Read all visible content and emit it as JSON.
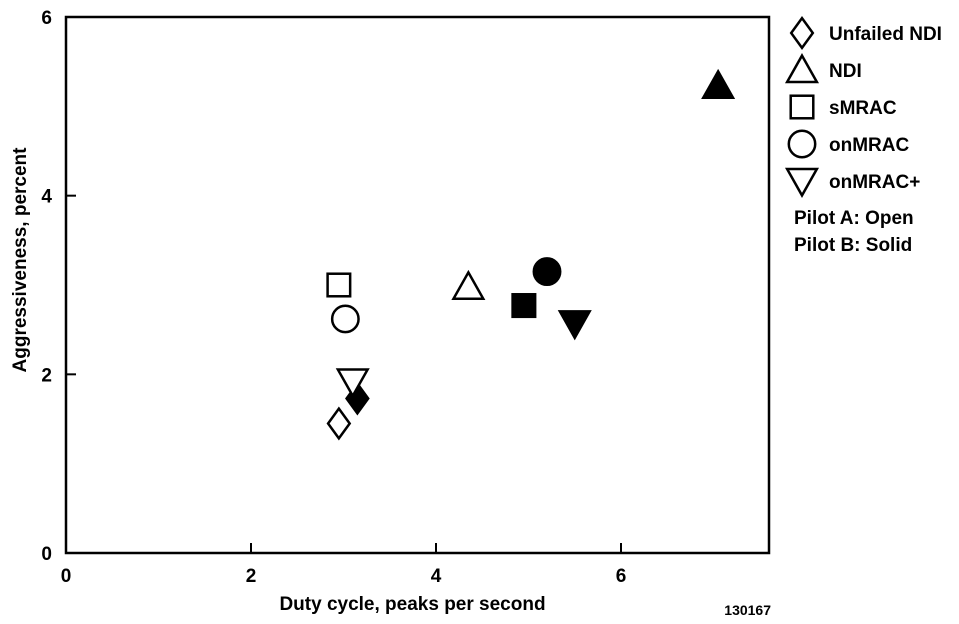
{
  "chart_data": {
    "type": "scatter",
    "xlabel": "Duty cycle, peaks per second",
    "ylabel": "Aggressiveness, percent",
    "xlim": [
      0,
      7.6
    ],
    "ylim": [
      0,
      6
    ],
    "xticks": [
      "0",
      "2",
      "4",
      "6"
    ],
    "yticks": [
      "0",
      "2",
      "4",
      "6"
    ],
    "grid": false,
    "legend_position": "right",
    "figure_id": "130167",
    "legend_notes": [
      "Pilot A: Open",
      "Pilot B: Solid"
    ],
    "series": [
      {
        "name": "Unfailed NDI",
        "marker": "diamond",
        "points": [
          {
            "x": 2.95,
            "y": 1.45,
            "pilot": "A"
          },
          {
            "x": 3.15,
            "y": 1.73,
            "pilot": "B"
          }
        ]
      },
      {
        "name": "NDI",
        "marker": "triangle-up",
        "points": [
          {
            "x": 4.35,
            "y": 2.98,
            "pilot": "A"
          },
          {
            "x": 7.05,
            "y": 5.23,
            "pilot": "B"
          }
        ]
      },
      {
        "name": "sMRAC",
        "marker": "square",
        "points": [
          {
            "x": 2.95,
            "y": 3.0,
            "pilot": "A"
          },
          {
            "x": 4.95,
            "y": 2.77,
            "pilot": "B"
          }
        ]
      },
      {
        "name": "onMRAC",
        "marker": "circle",
        "points": [
          {
            "x": 3.02,
            "y": 2.62,
            "pilot": "A"
          },
          {
            "x": 5.2,
            "y": 3.15,
            "pilot": "B"
          }
        ]
      },
      {
        "name": "onMRAC+",
        "marker": "triangle-down",
        "points": [
          {
            "x": 3.1,
            "y": 1.92,
            "pilot": "A"
          },
          {
            "x": 5.5,
            "y": 2.57,
            "pilot": "B"
          }
        ]
      }
    ]
  }
}
